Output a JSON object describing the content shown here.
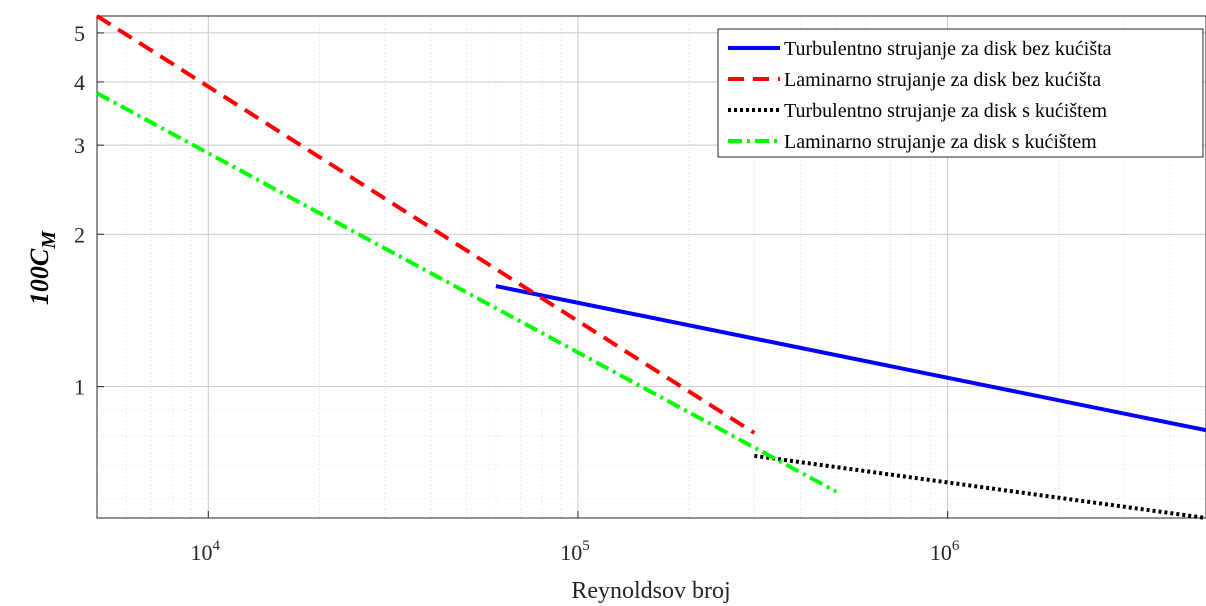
{
  "chart_data": {
    "type": "line",
    "xscale": "log",
    "yscale": "log",
    "xlim": [
      5000,
      5000000
    ],
    "ylim": [
      0.55,
      5.4
    ],
    "grid": true,
    "legend_position": "top-right",
    "xlabel": "Reynoldsov broj",
    "ylabel_main": "100C",
    "ylabel_sub": "M",
    "xticks": [
      {
        "value": 10000,
        "base": "10",
        "exp": "4"
      },
      {
        "value": 100000,
        "base": "10",
        "exp": "5"
      },
      {
        "value": 1000000,
        "base": "10",
        "exp": "6"
      }
    ],
    "yticks": [
      {
        "value": 1,
        "label": "1"
      },
      {
        "value": 2,
        "label": "2"
      },
      {
        "value": 3,
        "label": "3"
      },
      {
        "value": 4,
        "label": "4"
      },
      {
        "value": 5,
        "label": "5"
      }
    ],
    "series": [
      {
        "name": "Turbulentno strujanje za disk bez kućišta",
        "color": "#0000ff",
        "style": "solid",
        "x": [
          60000,
          5000000
        ],
        "y": [
          1.58,
          0.82
        ]
      },
      {
        "name": "Laminarno strujanje za disk bez kućišta",
        "color": "#ff0000",
        "style": "dashed",
        "x": [
          5000,
          300000
        ],
        "y": [
          5.4,
          0.81
        ]
      },
      {
        "name": "Turbulentno strujanje za disk s kućištem",
        "color": "#000000",
        "style": "dotted",
        "x": [
          300000,
          5000000
        ],
        "y": [
          0.73,
          0.55
        ]
      },
      {
        "name": "Laminarno strujanje za disk s kućištem",
        "color": "#00ff00",
        "style": "dashdot",
        "x": [
          5000,
          500000
        ],
        "y": [
          3.8,
          0.62
        ]
      }
    ]
  }
}
